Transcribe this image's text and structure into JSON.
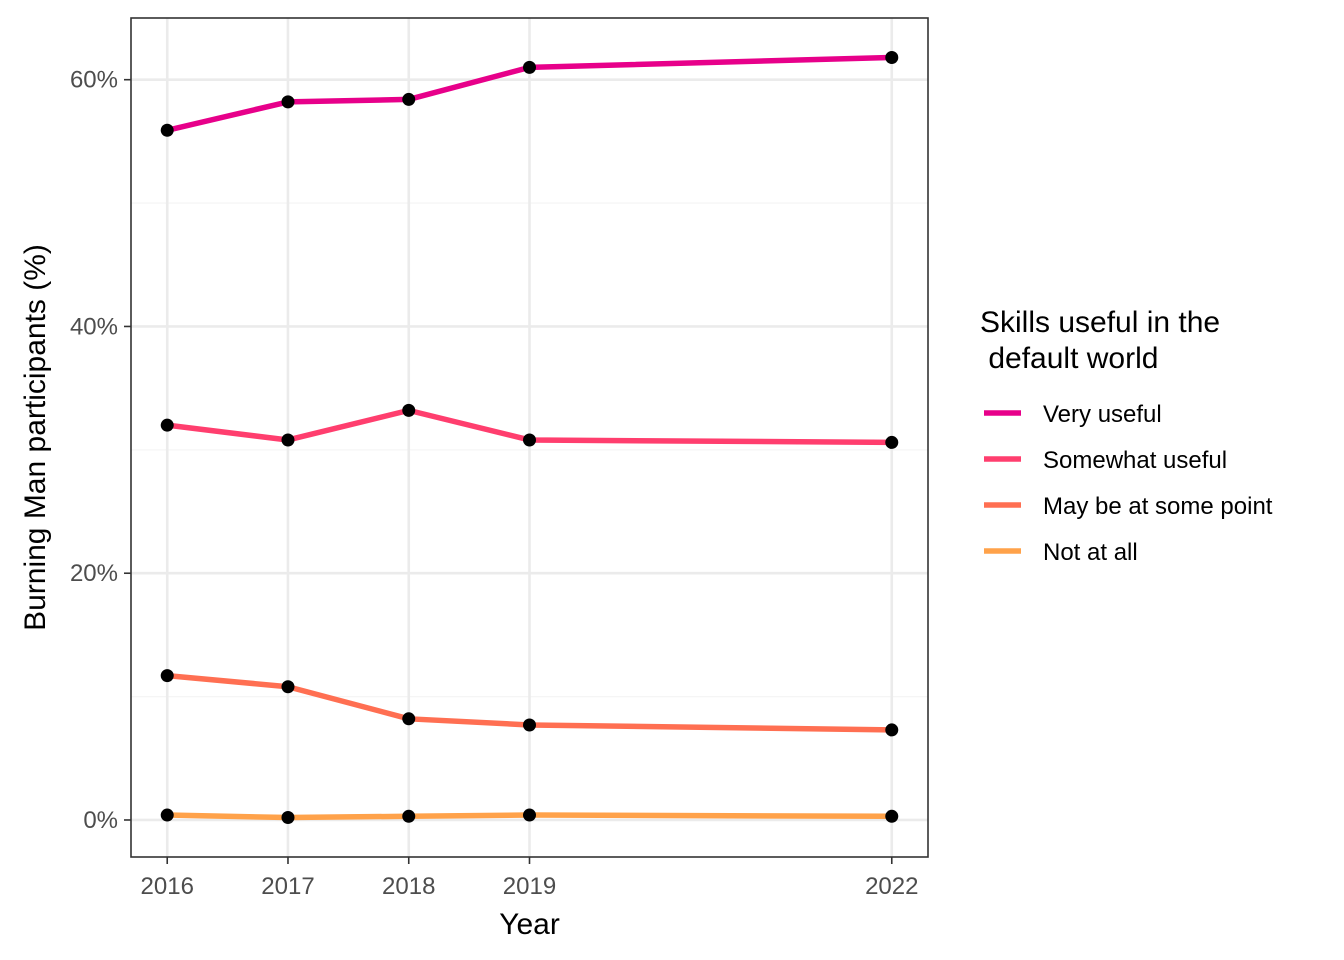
{
  "chart_data": {
    "type": "line",
    "title": "",
    "xlabel": "Year",
    "ylabel": "Burning Man participants (%)",
    "x": [
      2016,
      2017,
      2018,
      2019,
      2022
    ],
    "x_tick_labels": [
      "2016",
      "2017",
      "2018",
      "2019",
      "2022"
    ],
    "xlim": [
      2015.7,
      2022.3
    ],
    "ylim": [
      -3.0,
      65.0
    ],
    "y_ticks": [
      0,
      20,
      40,
      60
    ],
    "y_tick_labels": [
      "0%",
      "20%",
      "40%",
      "60%"
    ],
    "grid": true,
    "legend": {
      "title_lines": [
        "Skills useful in the",
        " default world"
      ],
      "position": "right"
    },
    "series": [
      {
        "name": "Very useful",
        "color": "#E7008A",
        "values": [
          55.9,
          58.2,
          58.4,
          61.0,
          61.8
        ]
      },
      {
        "name": "Somewhat useful",
        "color": "#FF3E6E",
        "values": [
          32.0,
          30.8,
          33.2,
          30.8,
          30.6
        ]
      },
      {
        "name": "May be at some point",
        "color": "#FF6F52",
        "values": [
          11.7,
          10.8,
          8.2,
          7.7,
          7.3
        ]
      },
      {
        "name": "Not at all",
        "color": "#FFA24A",
        "values": [
          0.4,
          0.2,
          0.3,
          0.4,
          0.3
        ]
      }
    ],
    "point_color": "#000000"
  }
}
